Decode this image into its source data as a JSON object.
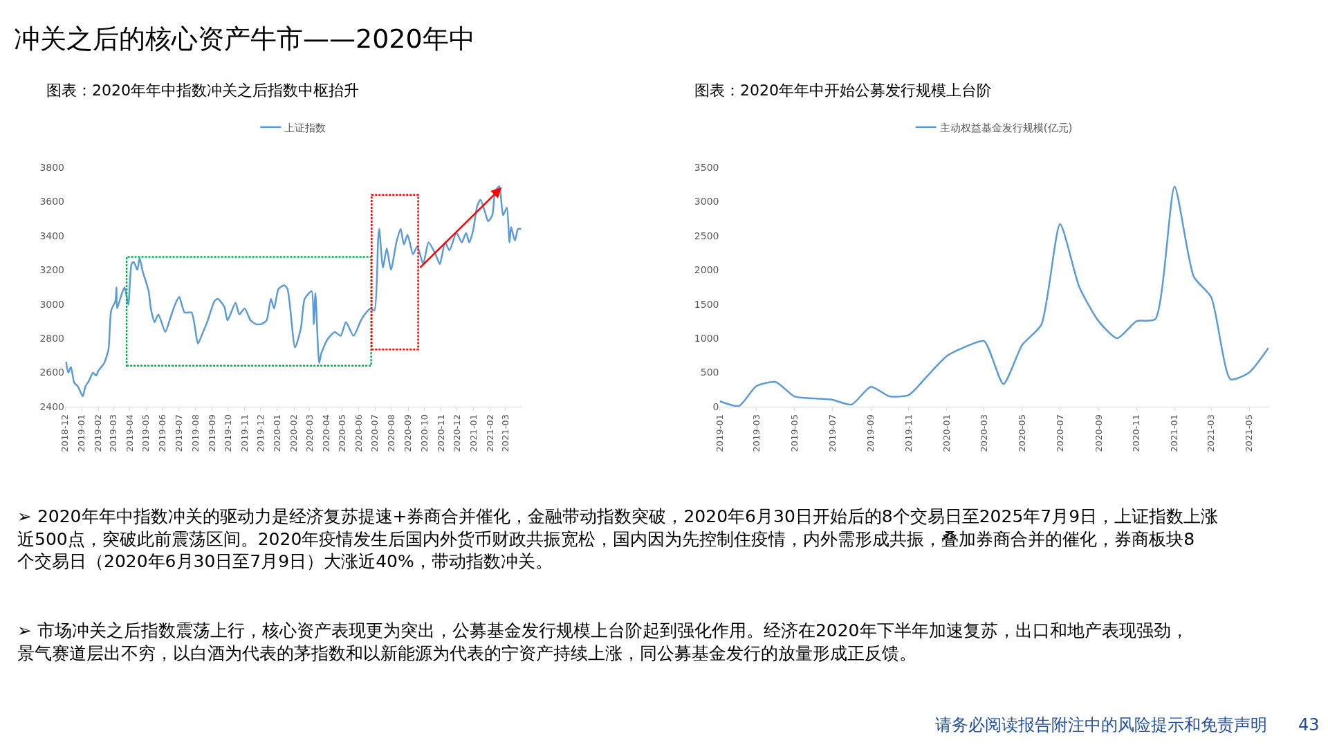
{
  "chart_data": [
    {
      "type": "line",
      "title": "图表：2020年年中指数冲关之后指数中枢抬升",
      "annotations": [
        "冲关之后的核心资产牛市——2020年中"
      ],
      "series": [
        {
          "name": "上证指数",
          "color": "#5b9bd5",
          "x": [
            "2018-12-03",
            "2018-12-07",
            "2018-12-12",
            "2018-12-18",
            "2018-12-25",
            "2019-01-03",
            "2019-01-08",
            "2019-01-15",
            "2019-01-22",
            "2019-01-28",
            "2019-02-01",
            "2019-02-12",
            "2019-02-20",
            "2019-02-25",
            "2019-03-05",
            "2019-03-07",
            "2019-03-08",
            "2019-03-15",
            "2019-03-22",
            "2019-03-29",
            "2019-04-04",
            "2019-04-08",
            "2019-04-15",
            "2019-04-19",
            "2019-04-25",
            "2019-05-06",
            "2019-05-10",
            "2019-05-17",
            "2019-05-24",
            "2019-06-06",
            "2019-06-14",
            "2019-06-24",
            "2019-07-02",
            "2019-07-12",
            "2019-07-25",
            "2019-08-06",
            "2019-08-14",
            "2019-08-23",
            "2019-09-06",
            "2019-09-12",
            "2019-09-24",
            "2019-09-30",
            "2019-10-15",
            "2019-10-22",
            "2019-11-01",
            "2019-11-12",
            "2019-11-22",
            "2019-12-02",
            "2019-12-12",
            "2019-12-20",
            "2019-12-26",
            "2020-01-03",
            "2020-01-14",
            "2020-01-20",
            "2020-02-03",
            "2020-02-14",
            "2020-02-21",
            "2020-03-05",
            "2020-03-09",
            "2020-03-12",
            "2020-03-19",
            "2020-03-23",
            "2020-04-03",
            "2020-04-17",
            "2020-04-28",
            "2020-05-08",
            "2020-05-22",
            "2020-06-05",
            "2020-06-12",
            "2020-06-23",
            "2020-06-30",
            "2020-07-07",
            "2020-07-09",
            "2020-07-16",
            "2020-07-23",
            "2020-07-31",
            "2020-08-10",
            "2020-08-18",
            "2020-08-24",
            "2020-08-31",
            "2020-09-10",
            "2020-09-18",
            "2020-09-29",
            "2020-10-09",
            "2020-10-22",
            "2020-10-30",
            "2020-11-09",
            "2020-11-17",
            "2020-11-30",
            "2020-12-10",
            "2020-12-18",
            "2020-12-24",
            "2020-12-31",
            "2021-01-08",
            "2021-01-14",
            "2021-01-22",
            "2021-01-28",
            "2021-02-05",
            "2021-02-10",
            "2021-02-18",
            "2021-02-25",
            "2021-03-04",
            "2021-03-09",
            "2021-03-12",
            "2021-03-19",
            "2021-03-25",
            "2021-03-31"
          ],
          "values": [
            2662,
            2598,
            2632,
            2541,
            2518,
            2461,
            2518,
            2553,
            2598,
            2582,
            2609,
            2655,
            2735,
            2962,
            3019,
            3099,
            2974,
            3042,
            3099,
            2996,
            3235,
            3247,
            3201,
            3270,
            3190,
            3076,
            2974,
            2894,
            2940,
            2837,
            2905,
            2996,
            3042,
            2951,
            2951,
            2769,
            2826,
            2894,
            3019,
            3031,
            2985,
            2905,
            3008,
            2940,
            2974,
            2905,
            2883,
            2883,
            2905,
            3031,
            2974,
            3088,
            3110,
            3088,
            2746,
            2860,
            3031,
            3076,
            2883,
            3065,
            2655,
            2712,
            2791,
            2837,
            2814,
            2894,
            2814,
            2905,
            2940,
            2974,
            2962,
            3383,
            3440,
            3213,
            3326,
            3201,
            3361,
            3440,
            3349,
            3406,
            3292,
            3338,
            3235,
            3361,
            3292,
            3235,
            3361,
            3315,
            3417,
            3361,
            3417,
            3361,
            3429,
            3576,
            3611,
            3542,
            3486,
            3520,
            3656,
            3690,
            3520,
            3565,
            3361,
            3451,
            3372,
            3440,
            3440
          ]
        }
      ],
      "xlim": [
        "2018-12-01",
        "2021-03-31"
      ],
      "xticks": [
        "2018-12",
        "2019-01",
        "2019-02",
        "2019-03",
        "2019-04",
        "2019-05",
        "2019-06",
        "2019-07",
        "2019-08",
        "2019-09",
        "2019-10",
        "2019-11",
        "2019-12",
        "2020-01",
        "2020-02",
        "2020-03",
        "2020-04",
        "2020-05",
        "2020-06",
        "2020-07",
        "2020-08",
        "2020-09",
        "2020-10",
        "2020-11",
        "2020-12",
        "2021-01",
        "2021-02",
        "2021-03"
      ],
      "ylim": [
        2400,
        3800
      ],
      "yticks": [
        2400,
        2600,
        2800,
        3000,
        3200,
        3400,
        3600,
        3800
      ],
      "grid": false,
      "legend": "top",
      "marker": "none",
      "line_style": "solid"
    },
    {
      "type": "line",
      "title": "图表：2020年年中开始公募发行规模上台阶",
      "annotations": [
        "➢ 2020年年中指数冲关的驱动力是经济复苏提速+券商合并催化，金融带动指数突破，2020年6月30日开始后的8个交易日至2025年7月9日，上证指数上涨近500点，突破此前震荡区间。2020年疫情发生后国内外货币财政共振宽松，国内因为先控制住疫情，内外需形成共振，叠加券商合并的催化，券商板块8个交易日（2020年6月30日至7月9日）大涨近40%，带动指数冲关。",
        "➢ 市场冲关之后指数震荡上行，核心资产表现更为突出，公募基金发行规模上台阶起到强化作用。经济在2020年下半年加速复苏，出口和地产表现强劲，景气赛道层出不穷，以白酒为代表的茅指数和以新能源为代表的宁资产持续上涨，同公募基金发行的放量形成正反馈。",
        "请务必阅读报告附注中的风险提示和免责声明",
        "43"
      ],
      "series": [
        {
          "name": "主动权益基金发行规模(亿元)",
          "color": "#5b9bd5",
          "x": [
            "2019-01",
            "2019-02",
            "2019-03",
            "2019-04",
            "2019-05",
            "2019-06",
            "2019-07",
            "2019-08",
            "2019-09",
            "2019-10",
            "2019-11",
            "2019-12",
            "2020-01",
            "2020-02",
            "2020-03",
            "2020-04",
            "2020-05",
            "2020-06",
            "2020-07",
            "2020-08",
            "2020-09",
            "2020-10",
            "2020-11",
            "2020-12",
            "2021-01",
            "2021-02",
            "2021-03",
            "2021-04",
            "2021-05",
            "2021-06"
          ],
          "values": [
            80,
            10,
            300,
            360,
            150,
            120,
            100,
            30,
            290,
            150,
            170,
            450,
            740,
            880,
            960,
            330,
            900,
            1200,
            2670,
            1750,
            1250,
            1000,
            1250,
            1280,
            3220,
            1900,
            1600,
            400,
            500,
            860
          ]
        }
      ],
      "xlim": [
        "2019-01",
        "2021-06"
      ],
      "xticks": [
        "2019-01",
        "2019-03",
        "2019-05",
        "2019-07",
        "2019-09",
        "2019-11",
        "2020-01",
        "2020-03",
        "2020-05",
        "2020-07",
        "2020-09",
        "2020-11",
        "2021-01",
        "2021-03",
        "2021-05"
      ],
      "ylim": [
        0,
        3500
      ],
      "yticks": [
        0,
        500,
        1000,
        1500,
        2000,
        2500,
        3000,
        3500
      ],
      "grid": false,
      "legend": "top",
      "marker": "none",
      "line_style": "solid"
    }
  ]
}
